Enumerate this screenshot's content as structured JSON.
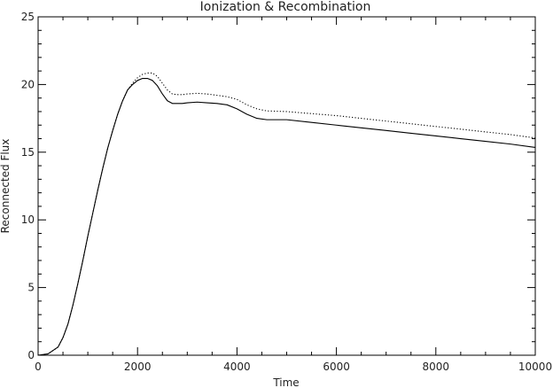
{
  "chart_data": {
    "type": "line",
    "title": "Ionization & Recombination",
    "xlabel": "Time",
    "ylabel": "Reconnected Flux",
    "xlim": [
      0,
      10000
    ],
    "ylim": [
      0,
      25
    ],
    "xticks": [
      0,
      2000,
      4000,
      6000,
      8000,
      10000
    ],
    "xtick_labels": [
      "0",
      "2000",
      "4000",
      "6000",
      "8000",
      "10000"
    ],
    "yticks": [
      0,
      5,
      10,
      15,
      20,
      25
    ],
    "ytick_labels": [
      "0",
      "5",
      "10",
      "15",
      "20",
      "25"
    ],
    "grid": false,
    "legend": "none",
    "series": [
      {
        "style": "solid",
        "color": "#000000",
        "x": [
          0,
          200,
          400,
          500,
          600,
          700,
          800,
          900,
          1000,
          1100,
          1200,
          1300,
          1400,
          1500,
          1600,
          1700,
          1800,
          1900,
          2000,
          2100,
          2200,
          2300,
          2400,
          2500,
          2600,
          2700,
          2800,
          2900,
          3000,
          3200,
          3400,
          3600,
          3800,
          4000,
          4200,
          4400,
          4600,
          5000,
          5500,
          6000,
          6500,
          7000,
          7500,
          8000,
          8500,
          9000,
          9500,
          10000
        ],
        "values": [
          0.0,
          0.1,
          0.6,
          1.3,
          2.3,
          3.7,
          5.3,
          7.0,
          8.8,
          10.5,
          12.2,
          13.8,
          15.3,
          16.6,
          17.8,
          18.8,
          19.6,
          20.0,
          20.3,
          20.45,
          20.45,
          20.3,
          19.9,
          19.3,
          18.8,
          18.6,
          18.6,
          18.6,
          18.65,
          18.7,
          18.65,
          18.6,
          18.5,
          18.2,
          17.8,
          17.5,
          17.4,
          17.4,
          17.2,
          17.0,
          16.8,
          16.6,
          16.4,
          16.2,
          16.0,
          15.8,
          15.6,
          15.35
        ]
      },
      {
        "style": "dotted",
        "color": "#000000",
        "x": [
          0,
          200,
          400,
          500,
          600,
          700,
          800,
          900,
          1000,
          1100,
          1200,
          1300,
          1400,
          1500,
          1600,
          1700,
          1800,
          1900,
          2000,
          2100,
          2200,
          2300,
          2400,
          2500,
          2600,
          2700,
          2800,
          2900,
          3000,
          3200,
          3400,
          3600,
          3800,
          4000,
          4200,
          4400,
          4600,
          5000,
          5500,
          6000,
          6500,
          7000,
          7500,
          8000,
          8500,
          9000,
          9500,
          10000
        ],
        "values": [
          0.0,
          0.1,
          0.6,
          1.3,
          2.3,
          3.7,
          5.3,
          7.0,
          8.8,
          10.5,
          12.2,
          13.8,
          15.3,
          16.6,
          17.8,
          18.8,
          19.6,
          20.1,
          20.5,
          20.75,
          20.85,
          20.85,
          20.6,
          20.1,
          19.6,
          19.3,
          19.25,
          19.25,
          19.3,
          19.35,
          19.3,
          19.2,
          19.1,
          18.9,
          18.5,
          18.2,
          18.05,
          18.0,
          17.85,
          17.7,
          17.5,
          17.3,
          17.1,
          16.9,
          16.7,
          16.5,
          16.3,
          16.05
        ]
      }
    ]
  }
}
